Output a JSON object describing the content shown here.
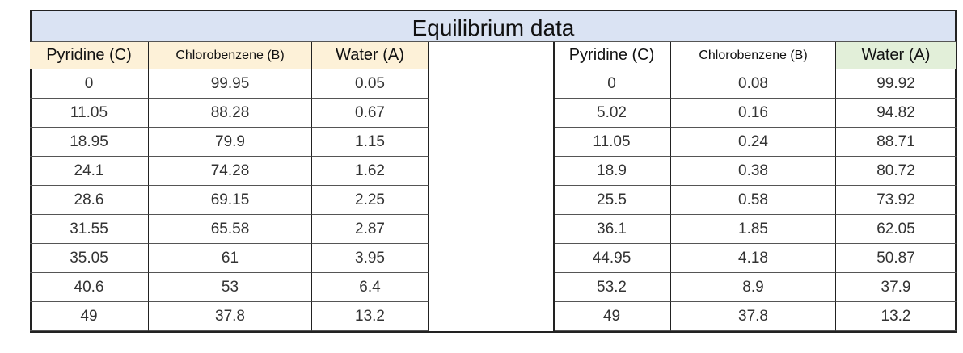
{
  "title": "Equilibrium data",
  "left": {
    "headers": [
      "Pyridine (C)",
      "Chlorobenzene (B)",
      "Water (A)"
    ],
    "rows": [
      [
        "0",
        "99.95",
        "0.05"
      ],
      [
        "11.05",
        "88.28",
        "0.67"
      ],
      [
        "18.95",
        "79.9",
        "1.15"
      ],
      [
        "24.1",
        "74.28",
        "1.62"
      ],
      [
        "28.6",
        "69.15",
        "2.25"
      ],
      [
        "31.55",
        "65.58",
        "2.87"
      ],
      [
        "35.05",
        "61",
        "3.95"
      ],
      [
        "40.6",
        "53",
        "6.4"
      ],
      [
        "49",
        "37.8",
        "13.2"
      ]
    ]
  },
  "right": {
    "headers": [
      "Pyridine (C)",
      "Chlorobenzene (B)",
      "Water (A)"
    ],
    "rows": [
      [
        "0",
        "0.08",
        "99.92"
      ],
      [
        "5.02",
        "0.16",
        "94.82"
      ],
      [
        "11.05",
        "0.24",
        "88.71"
      ],
      [
        "18.9",
        "0.38",
        "80.72"
      ],
      [
        "25.5",
        "0.58",
        "73.92"
      ],
      [
        "36.1",
        "1.85",
        "62.05"
      ],
      [
        "44.95",
        "4.18",
        "50.87"
      ],
      [
        "53.2",
        "8.9",
        "37.9"
      ],
      [
        "49",
        "37.8",
        "13.2"
      ]
    ]
  }
}
